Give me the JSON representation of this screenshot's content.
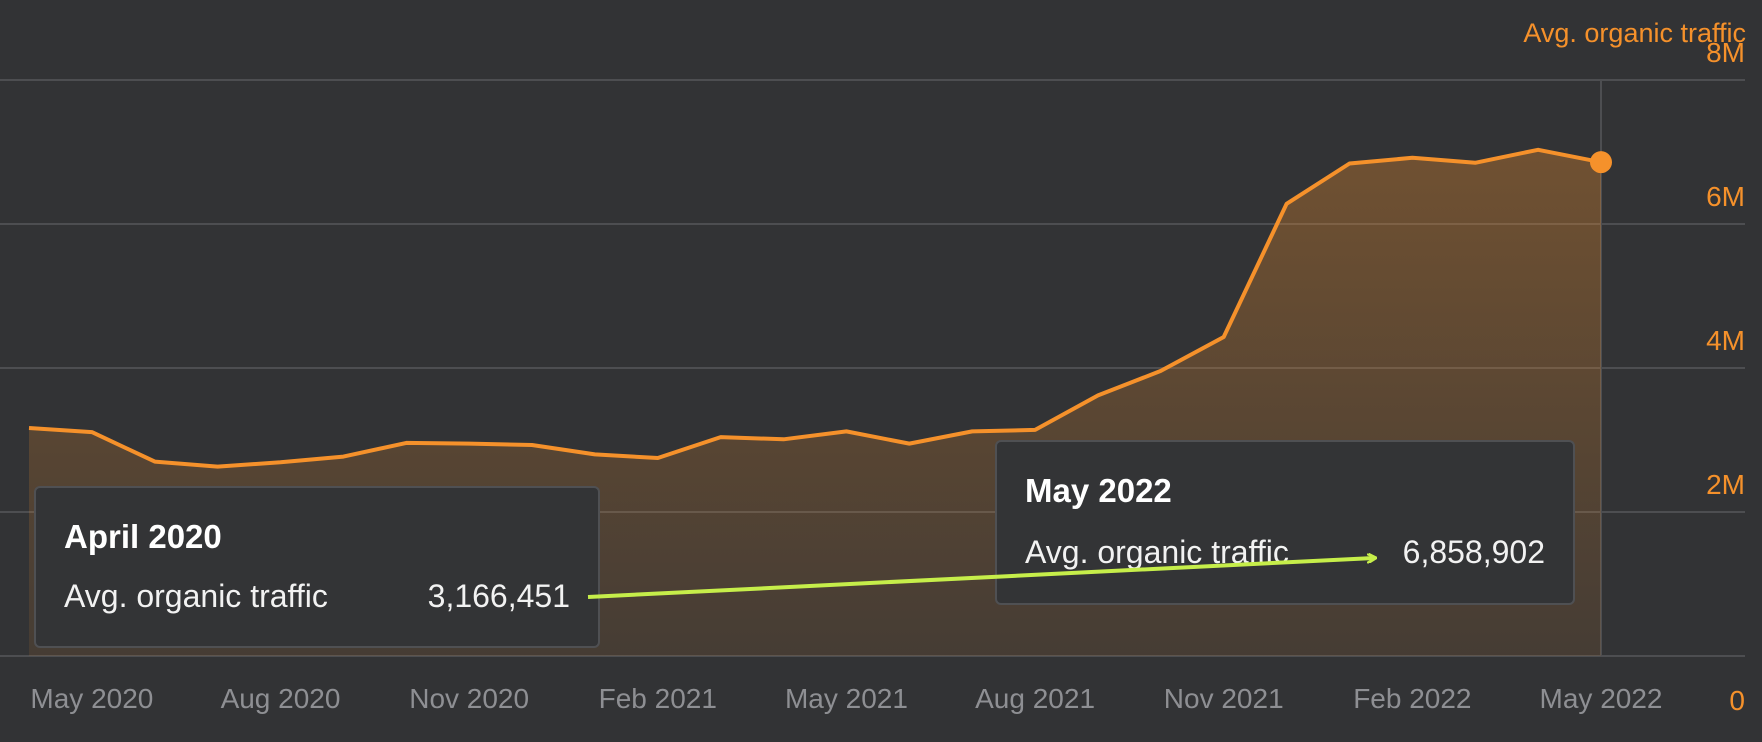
{
  "series_title": "Avg. organic traffic",
  "colors": {
    "background": "#323335",
    "line": "#f5912b",
    "axis_text": "#f5912b",
    "x_tick_text": "#8e8f93",
    "grid": "#4d4e51",
    "arrow": "#c6ee4a"
  },
  "tooltips": {
    "left": {
      "title": "April 2020",
      "label": "Avg. organic traffic",
      "value": "3,166,451"
    },
    "right": {
      "title": "May 2022",
      "label": "Avg. organic traffic",
      "value": "6,858,902"
    }
  },
  "annotation": {
    "type": "arrow",
    "from": "left-tooltip-value",
    "to": "right-tooltip-value"
  },
  "chart_data": {
    "type": "area",
    "title": "",
    "ylabel": "Avg. organic traffic",
    "y_axis_position": "right",
    "ylim": [
      0,
      8000000
    ],
    "yticks": [
      0,
      2000000,
      4000000,
      6000000,
      8000000
    ],
    "ytick_labels": [
      "0",
      "2M",
      "4M",
      "6M",
      "8M"
    ],
    "xtick_labels": [
      "May 2020",
      "Aug 2020",
      "Nov 2020",
      "Feb 2021",
      "May 2021",
      "Aug 2021",
      "Nov 2021",
      "Feb 2022",
      "May 2022"
    ],
    "grid": true,
    "x": [
      "2020-04",
      "2020-05",
      "2020-06",
      "2020-07",
      "2020-08",
      "2020-09",
      "2020-10",
      "2020-11",
      "2020-12",
      "2021-01",
      "2021-02",
      "2021-03",
      "2021-04",
      "2021-05",
      "2021-06",
      "2021-07",
      "2021-08",
      "2021-09",
      "2021-10",
      "2021-11",
      "2021-12",
      "2022-01",
      "2022-02",
      "2022-03",
      "2022-04",
      "2022-05"
    ],
    "series": [
      {
        "name": "Avg. organic traffic",
        "values": [
          3166451,
          3110000,
          2700000,
          2630000,
          2690000,
          2770000,
          2960000,
          2950000,
          2930000,
          2800000,
          2750000,
          3040000,
          3010000,
          3120000,
          2950000,
          3120000,
          3140000,
          3620000,
          3960000,
          4430000,
          6280000,
          6840000,
          6920000,
          6850000,
          7030000,
          6858902
        ]
      }
    ],
    "highlight_point": {
      "x": "2022-05",
      "value": 6858902
    }
  }
}
